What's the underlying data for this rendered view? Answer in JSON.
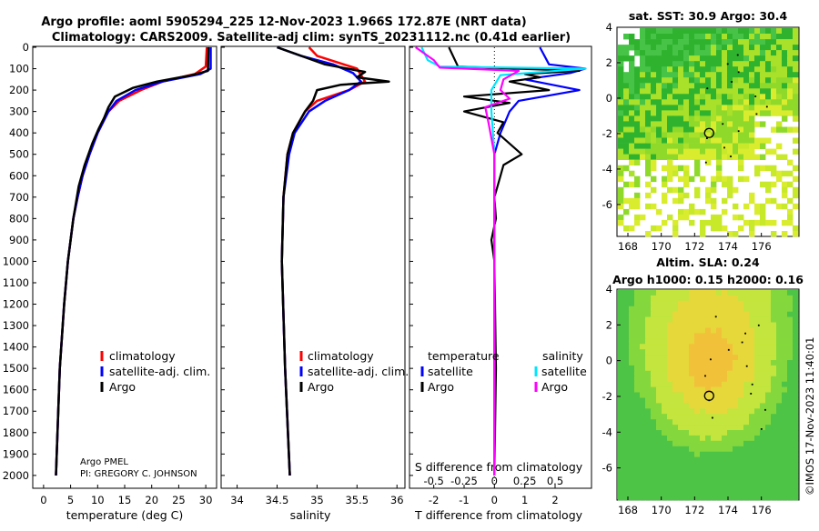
{
  "title_line1": "Argo profile: aoml 5905294_225 12-Nov-2023 1.966S 172.87E (NRT data)",
  "title_line2": "Climatology: CARS2009. Satellite-adj clim: synTS_20231112.nc (0.41d earlier)",
  "colors": {
    "climatology": "#ff0000",
    "satellite": "#0000ff",
    "argo": "#000000",
    "sat_salinity": "#00e5ff",
    "argo_salinity": "#ff00ff"
  },
  "depth_ticks": [
    "0",
    "100",
    "200",
    "300",
    "400",
    "500",
    "600",
    "700",
    "800",
    "900",
    "1000",
    "1100",
    "1200",
    "1300",
    "1400",
    "1500",
    "1600",
    "1700",
    "1800",
    "1900",
    "2000"
  ],
  "chart_data": [
    {
      "type": "line",
      "title": "temperature profile",
      "xlabel": "temperature (deg C)",
      "ylabel": "depth",
      "xlim": [
        -2,
        32
      ],
      "ylim": [
        2060,
        0
      ],
      "xticks": [
        "0",
        "5",
        "10",
        "15",
        "20",
        "25",
        "30"
      ],
      "legend": [
        "climatology",
        "satellite-adj. clim.",
        "Argo"
      ],
      "credit_1": "Argo PMEL",
      "credit_2": "PI: GREGORY C. JOHNSON",
      "series": [
        {
          "name": "climatology",
          "depth": [
            0,
            90,
            125,
            160,
            200,
            250,
            300,
            350,
            400,
            500,
            600,
            700,
            800,
            1000,
            1200,
            1500,
            2000
          ],
          "values": [
            30.2,
            30.0,
            28.0,
            22.0,
            18.0,
            14.0,
            12.0,
            11.0,
            10.0,
            8.5,
            7.2,
            6.3,
            5.5,
            4.5,
            3.8,
            3.0,
            2.3
          ]
        },
        {
          "name": "satellite-adj. clim.",
          "depth": [
            0,
            100,
            125,
            160,
            200,
            250,
            300,
            350,
            400,
            500,
            600,
            700,
            800,
            1000,
            1200,
            1500,
            2000
          ],
          "values": [
            30.9,
            30.9,
            29.0,
            22.0,
            17.0,
            13.5,
            12.0,
            11.0,
            10.0,
            8.5,
            7.2,
            6.3,
            5.5,
            4.5,
            3.8,
            3.0,
            2.3
          ]
        },
        {
          "name": "Argo",
          "depth": [
            0,
            110,
            130,
            160,
            190,
            230,
            280,
            330,
            380,
            450,
            550,
            650,
            800,
            1000,
            1200,
            1500,
            2000
          ],
          "values": [
            30.5,
            30.4,
            27.5,
            21.0,
            16.5,
            13.2,
            12.0,
            11.2,
            10.2,
            9.0,
            7.6,
            6.5,
            5.5,
            4.5,
            3.8,
            3.0,
            2.3
          ]
        }
      ]
    },
    {
      "type": "line",
      "title": "salinity profile",
      "xlabel": "salinity",
      "xlim": [
        33.8,
        36.1
      ],
      "ylim": [
        2060,
        0
      ],
      "xticks": [
        "34",
        "34.5",
        "35",
        "35.5",
        "36"
      ],
      "legend": [
        "climatology",
        "satellite-adj. clim.",
        "Argo"
      ],
      "series": [
        {
          "name": "climatology",
          "depth": [
            0,
            40,
            100,
            160,
            200,
            250,
            300,
            400,
            500,
            700,
            1000,
            1500,
            2000
          ],
          "values": [
            34.9,
            35.0,
            35.5,
            35.6,
            35.4,
            35.0,
            34.85,
            34.7,
            34.63,
            34.58,
            34.56,
            34.6,
            34.66
          ]
        },
        {
          "name": "satellite-adj. clim.",
          "depth": [
            0,
            40,
            80,
            120,
            160,
            200,
            250,
            300,
            400,
            500,
            700,
            1000,
            1500,
            2000
          ],
          "values": [
            34.5,
            34.8,
            35.2,
            35.45,
            35.55,
            35.4,
            35.1,
            34.9,
            34.72,
            34.65,
            34.58,
            34.56,
            34.6,
            34.66
          ]
        },
        {
          "name": "Argo",
          "depth": [
            0,
            80,
            115,
            140,
            160,
            175,
            200,
            250,
            300,
            400,
            500,
            700,
            1000,
            1500,
            2000
          ],
          "values": [
            34.5,
            35.1,
            35.6,
            35.5,
            35.9,
            35.3,
            35.0,
            34.95,
            34.85,
            34.7,
            34.63,
            34.58,
            34.56,
            34.6,
            34.66
          ]
        }
      ]
    },
    {
      "type": "line",
      "title": "difference from climatology",
      "xlabel": "T difference from climatology",
      "xlabel_top": "S difference from climatology",
      "xlim": [
        -2.8,
        3.2
      ],
      "ylim": [
        2060,
        0
      ],
      "xticks": [
        "-2",
        "-1",
        "0",
        "1",
        "2"
      ],
      "xticks_s": [
        "-0.5",
        "-0.25",
        "0",
        "0.25",
        "0.5"
      ],
      "legend_temperature_title": "temperature",
      "legend_salinity_title": "salinity",
      "legend_temperature": [
        "satellite",
        "Argo"
      ],
      "legend_salinity": [
        "satellite",
        "Argo"
      ],
      "series": [
        {
          "name": "T satellite",
          "depth": [
            0,
            80,
            100,
            120,
            150,
            200,
            250,
            300,
            400,
            500,
            600,
            800,
            1000,
            1500,
            2000
          ],
          "values": [
            1.5,
            1.8,
            3.0,
            2.5,
            1.0,
            2.8,
            0.8,
            0.5,
            0.2,
            0.0,
            0.0,
            0.0,
            0.0,
            0.0,
            0.0
          ]
        },
        {
          "name": "T Argo",
          "depth": [
            0,
            90,
            110,
            125,
            140,
            160,
            200,
            230,
            260,
            300,
            350,
            400,
            450,
            500,
            550,
            600,
            650,
            700,
            800,
            900,
            1000,
            1500,
            2000
          ],
          "values": [
            -1.5,
            -1.2,
            2.8,
            1.0,
            1.5,
            0.5,
            1.8,
            -1.0,
            0.5,
            -1.0,
            0.3,
            0.1,
            0.5,
            0.9,
            0.3,
            0.2,
            0.1,
            0.0,
            0.05,
            -0.1,
            0.0,
            0.05,
            0.0
          ]
        },
        {
          "name": "S satellite",
          "depth": [
            0,
            60,
            90,
            100,
            130,
            200,
            300,
            500,
            1000,
            2000
          ],
          "values": [
            -2.4,
            -2.2,
            -1.8,
            3.0,
            0.2,
            -0.1,
            -0.1,
            0.0,
            0.0,
            0.0
          ]
        },
        {
          "name": "S Argo",
          "depth": [
            0,
            60,
            95,
            110,
            150,
            200,
            240,
            280,
            350,
            500,
            1000,
            2000
          ],
          "values": [
            -2.6,
            -2.0,
            -1.8,
            0.8,
            0.3,
            0.2,
            0.5,
            -0.3,
            -0.2,
            0.0,
            0.0,
            0.0
          ]
        }
      ]
    },
    {
      "type": "heatmap",
      "title": "sat. SST: 30.9 Argo: 30.4",
      "xticks": [
        "168",
        "170",
        "172",
        "174",
        "176"
      ],
      "yticks": [
        "4",
        "2",
        "0",
        "-2",
        "-4",
        "-6"
      ],
      "marker": {
        "lon": 172.87,
        "lat": -1.966
      }
    },
    {
      "type": "heatmap",
      "title": "Altim. SLA: 0.24",
      "subtitle": "Argo h1000: 0.15 h2000: 0.16",
      "xticks": [
        "168",
        "170",
        "172",
        "174",
        "176"
      ],
      "yticks": [
        "4",
        "2",
        "0",
        "-2",
        "-4",
        "-6"
      ],
      "marker": {
        "lon": 172.87,
        "lat": -1.966
      }
    }
  ],
  "watermark": "©IMOS 17-Nov-2023 11:40:01"
}
